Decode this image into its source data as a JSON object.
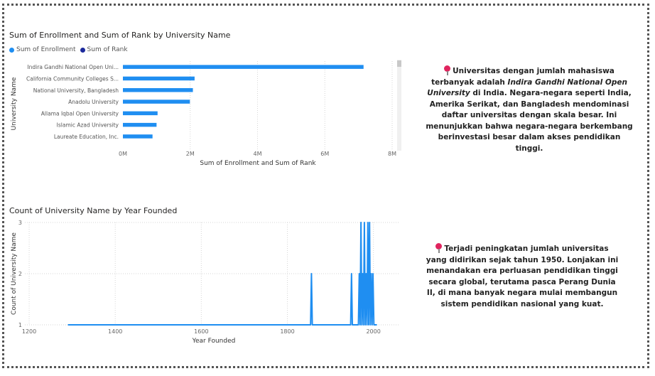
{
  "colors": {
    "enrollment": "#1f8ef1",
    "rank": "#1c2a9c",
    "line": "#1f8ef1",
    "pin": "#e0245e"
  },
  "chart_data": [
    {
      "type": "bar",
      "orientation": "horizontal",
      "title": "Sum of Enrollment and Sum of Rank by University Name",
      "xlabel": "Sum of Enrollment and Sum of Rank",
      "ylabel": "University Name",
      "legend": {
        "placement": "top-left",
        "entries": [
          "Sum of Enrollment",
          "Sum of Rank"
        ]
      },
      "categories": [
        "Indira Gandhi National Open Uni...",
        "California Community Colleges S...",
        "National University, Bangladesh",
        "Anadolu University",
        "Allama Iqbal Open University",
        "Islamic Azad University",
        "Laureate Education, Inc."
      ],
      "series": [
        {
          "name": "Sum of Enrollment",
          "values": [
            7150000,
            2130000,
            2080000,
            1990000,
            1030000,
            1000000,
            880000
          ]
        },
        {
          "name": "Sum of Rank",
          "values": [
            0,
            0,
            0,
            0,
            0,
            0,
            0
          ]
        }
      ],
      "xlim": [
        0,
        8000000
      ],
      "xticks": [
        0,
        2000000,
        4000000,
        6000000,
        8000000
      ],
      "xtick_labels": [
        "0M",
        "2M",
        "4M",
        "6M",
        "8M"
      ],
      "grid": true
    },
    {
      "type": "line",
      "title": "Count of University Name by Year Founded",
      "xlabel": "Year Founded",
      "ylabel": "Count of University Name",
      "x": [
        1290,
        1854,
        1856,
        1858,
        1947,
        1949,
        1951,
        1965,
        1967,
        1969,
        1971,
        1973,
        1975,
        1977,
        1979,
        1981,
        1983,
        1985,
        1987,
        1989,
        1991,
        1993,
        1995,
        1997,
        1999,
        2001,
        2003,
        2005,
        2008
      ],
      "y": [
        1,
        1,
        2,
        1,
        1,
        2,
        1,
        1,
        2,
        1,
        3,
        1,
        2,
        1,
        3,
        1,
        2,
        1,
        3,
        1,
        3,
        1,
        2,
        1,
        2,
        1,
        1,
        1,
        1
      ],
      "xlim": [
        1190,
        2060
      ],
      "xticks": [
        1200,
        1400,
        1600,
        1800,
        2000
      ],
      "ylim": [
        1,
        3
      ],
      "yticks": [
        1,
        2,
        3
      ],
      "grid": true
    }
  ],
  "narrative_top": {
    "part1": "Universitas dengan jumlah mahasiswa terbanyak adalah ",
    "emph": "Indira Gandhi National Open University",
    "part2": " di India. Negara-negara seperti India, Amerika Serikat, dan Bangladesh mendominasi daftar universitas dengan skala besar. Ini menunjukkan bahwa negara-negara berkembang berinvestasi besar dalam akses pendidikan tinggi."
  },
  "narrative_bottom": {
    "text": "Terjadi peningkatan jumlah universitas yang didirikan sejak tahun 1950. Lonjakan ini menandakan era perluasan pendidikan tinggi secara global, terutama pasca Perang Dunia II, di mana banyak negara mulai membangun sistem pendidikan nasional yang kuat."
  }
}
